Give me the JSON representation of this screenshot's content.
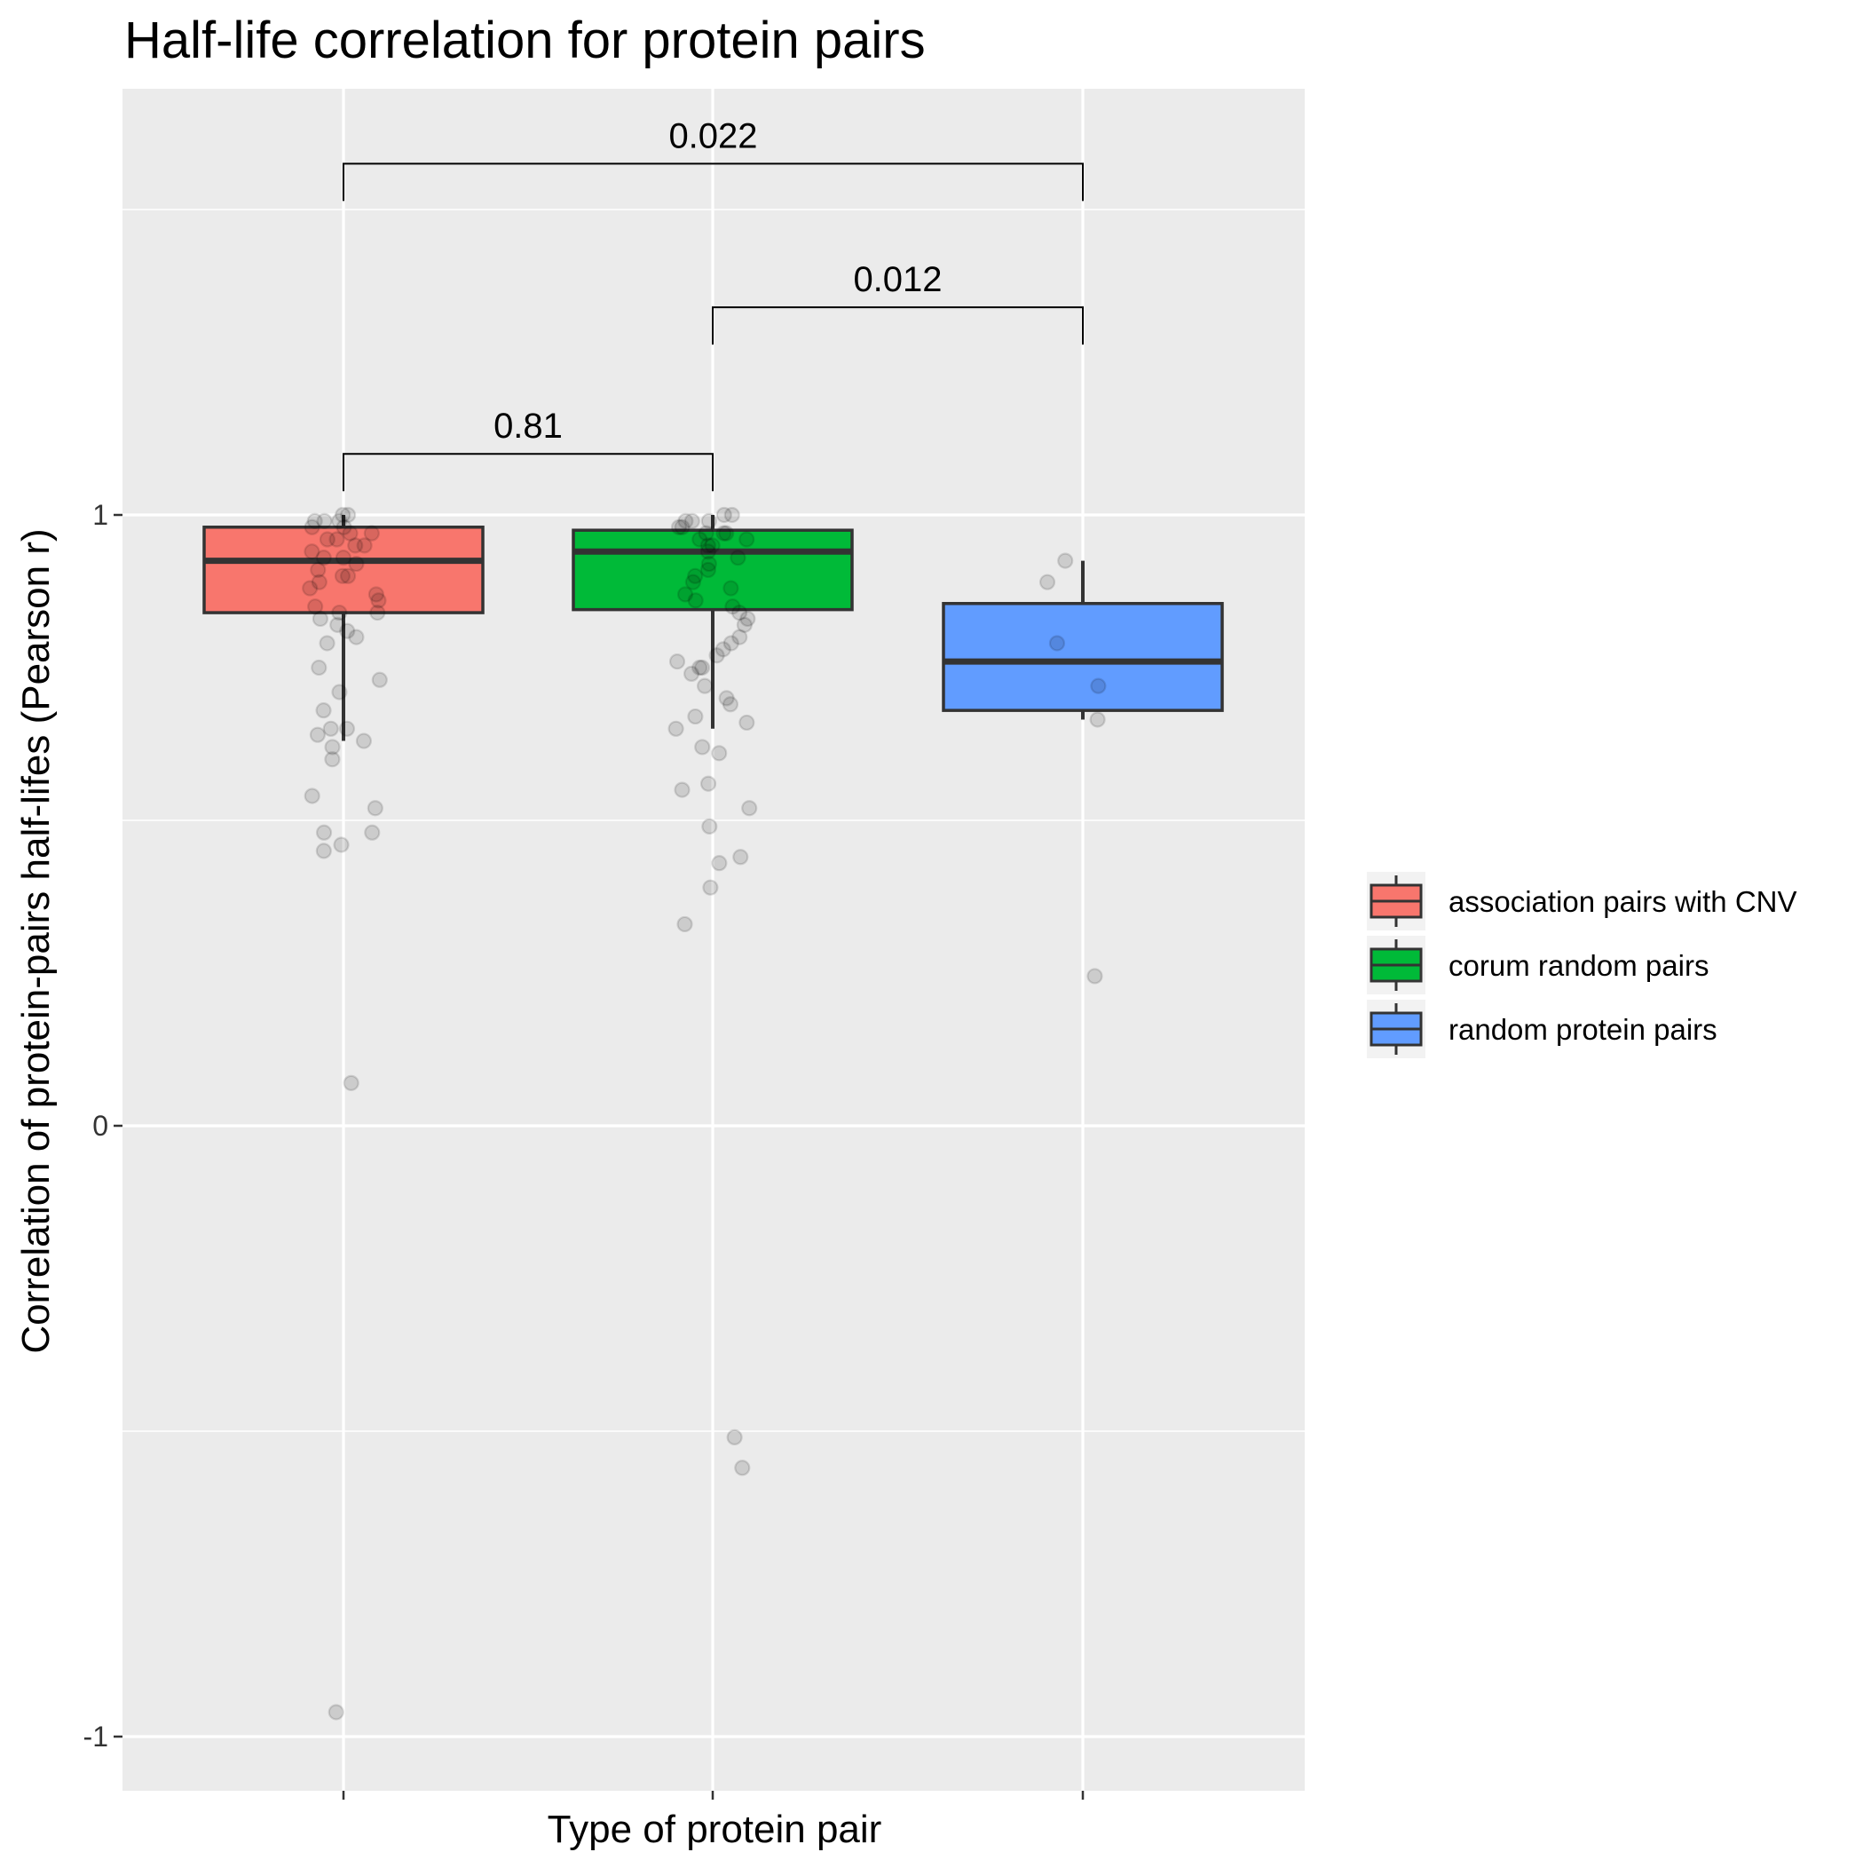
{
  "chart_data": {
    "type": "box",
    "title": "Half-life correlation for protein pairs",
    "xlabel": "Type of protein pair",
    "ylabel": "Correlation of protein-pairs half-lifes (Pearson r)",
    "ylim": [
      -1.08,
      1.7
    ],
    "yticks": [
      -1,
      0,
      1
    ],
    "ytick_labels": [
      "-1",
      "0",
      "1"
    ],
    "grid": true,
    "legend_position": "right",
    "categories": [
      "association pairs with CNV",
      "corum random pairs",
      "random protein pairs"
    ],
    "series": [
      {
        "name": "association pairs with CNV",
        "color": "#F8766D",
        "min": 0.63,
        "q1": 0.84,
        "median": 0.925,
        "q3": 0.98,
        "max": 1.0,
        "points": [
          1.0,
          1.0,
          0.99,
          0.99,
          0.99,
          0.98,
          0.98,
          0.97,
          0.97,
          0.96,
          0.96,
          0.95,
          0.95,
          0.94,
          0.93,
          0.93,
          0.92,
          0.91,
          0.9,
          0.9,
          0.89,
          0.88,
          0.87,
          0.86,
          0.85,
          0.84,
          0.84,
          0.83,
          0.82,
          0.81,
          0.8,
          0.79,
          0.75,
          0.73,
          0.71,
          0.68,
          0.65,
          0.65,
          0.64,
          0.63,
          0.62,
          0.6,
          0.54,
          0.52,
          0.48,
          0.48,
          0.46,
          0.45,
          0.07,
          -0.96
        ]
      },
      {
        "name": "corum random pairs",
        "color": "#00BA38",
        "min": 0.65,
        "q1": 0.845,
        "median": 0.94,
        "q3": 0.975,
        "max": 1.0,
        "points": [
          1.0,
          1.0,
          0.99,
          0.99,
          0.99,
          0.98,
          0.98,
          0.97,
          0.97,
          0.97,
          0.96,
          0.96,
          0.95,
          0.95,
          0.94,
          0.93,
          0.92,
          0.91,
          0.9,
          0.89,
          0.88,
          0.87,
          0.86,
          0.85,
          0.84,
          0.83,
          0.82,
          0.8,
          0.79,
          0.78,
          0.77,
          0.76,
          0.75,
          0.75,
          0.74,
          0.72,
          0.7,
          0.69,
          0.67,
          0.66,
          0.65,
          0.62,
          0.61,
          0.56,
          0.55,
          0.52,
          0.49,
          0.44,
          0.43,
          0.39,
          0.33,
          -0.51,
          -0.56
        ]
      },
      {
        "name": "random protein pairs",
        "color": "#619CFF",
        "min": 0.665,
        "q1": 0.68,
        "median": 0.76,
        "q3": 0.855,
        "max": 0.925,
        "points": [
          0.925,
          0.89,
          0.79,
          0.72,
          0.665,
          0.245
        ]
      }
    ],
    "annotations": [
      {
        "label": "0.81",
        "from": 0,
        "to": 1,
        "y": 1.1
      },
      {
        "label": "0.012",
        "from": 1,
        "to": 2,
        "y": 1.34
      },
      {
        "label": "0.022",
        "from": 0,
        "to": 2,
        "y": 1.575
      }
    ]
  }
}
